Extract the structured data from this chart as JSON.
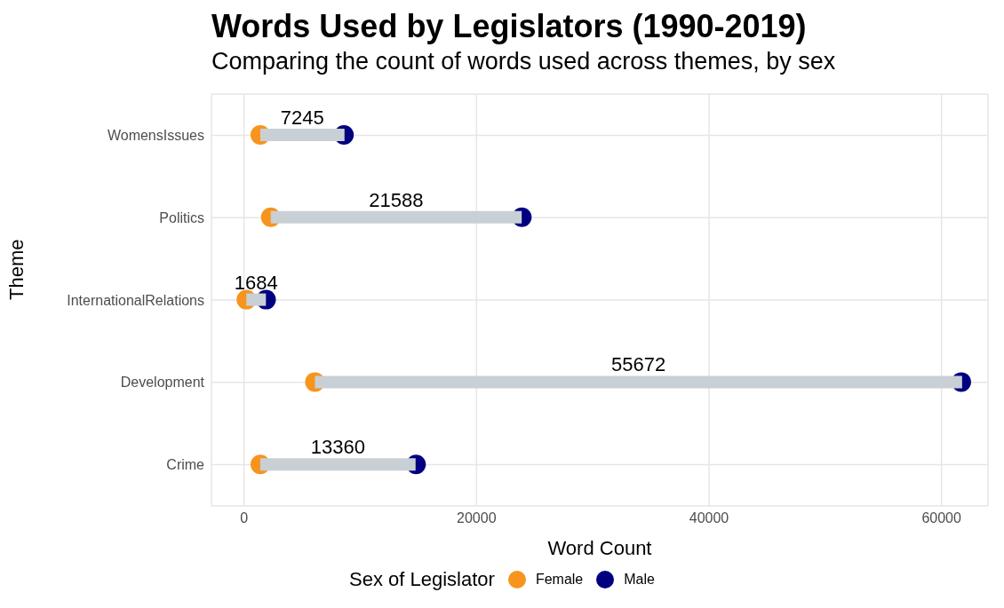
{
  "chart_data": {
    "type": "scatter",
    "orientation": "horizontal",
    "title": "Words Used by Legislators (1990-2019)",
    "subtitle": "Comparing the count of words used across themes, by sex",
    "xlabel": "Word Count",
    "ylabel": "Theme",
    "legend_title": "Sex of Legislator",
    "categories": [
      "WomensIssues",
      "Politics",
      "InternationalRelations",
      "Development",
      "Crime"
    ],
    "series": [
      {
        "type": "bar",
        "color": "#c9d0d5",
        "base": [
          1400,
          2300,
          200,
          6100,
          1400
        ],
        "values": [
          7245,
          21588,
          1684,
          55672,
          13360
        ],
        "data_labels": true
      },
      {
        "name": "Female",
        "color": "#f7941d",
        "values": [
          1400,
          2300,
          200,
          6100,
          1400
        ]
      },
      {
        "name": "Male",
        "color": "#000080",
        "values": [
          8600,
          23900,
          1900,
          61700,
          14800
        ]
      }
    ],
    "xlim": [
      -2800,
      64000
    ],
    "xticks": [
      0,
      20000,
      40000,
      60000
    ],
    "grid": true,
    "legend": "bottom",
    "marker": "circle"
  }
}
